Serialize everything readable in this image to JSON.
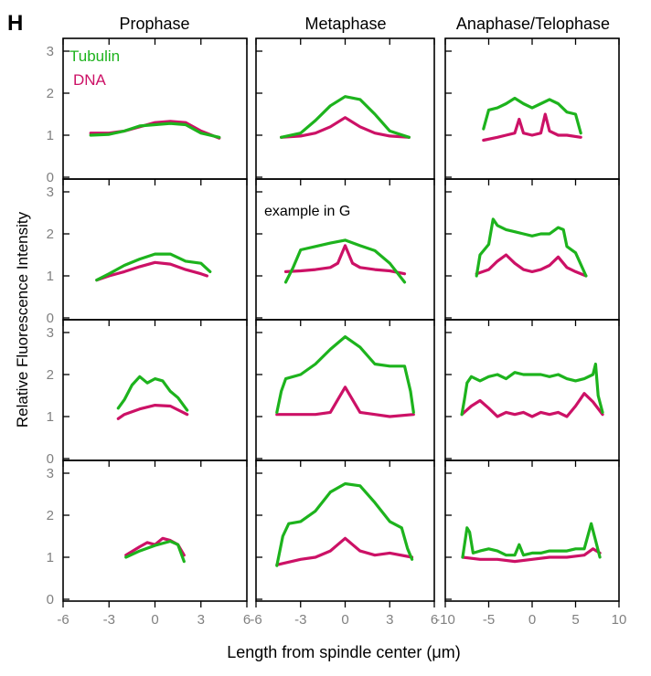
{
  "figure": {
    "panel_letter": "H",
    "ylabel": "Relative Fluorescence Intensity",
    "xlabel": "Length from spindle center (μm)",
    "annotation": "example in G"
  },
  "legend": {
    "tubulin": "Tubulin",
    "dna": "DNA"
  },
  "colors": {
    "tubulin": "#1db31d",
    "dna": "#cc1166",
    "axis": "#000000",
    "tick_label": "#808080"
  },
  "chart_data": {
    "type": "line",
    "ylim": [
      0,
      3.3
    ],
    "yticks": [
      0,
      1,
      2,
      3
    ],
    "grid": false,
    "legend_position": "top-left",
    "columns": [
      {
        "title": "Prophase",
        "xlim": [
          -6,
          6
        ],
        "xticks": [
          -6,
          -3,
          0,
          3,
          6
        ],
        "panels": [
          {
            "tubulin": {
              "x": [
                -4.2,
                -3,
                -2,
                -1,
                0,
                1,
                2,
                3,
                4.2
              ],
              "y": [
                1.0,
                1.02,
                1.1,
                1.22,
                1.25,
                1.28,
                1.25,
                1.05,
                0.95
              ]
            },
            "dna": {
              "x": [
                -4.2,
                -3,
                -2,
                -1,
                0,
                1,
                2,
                3,
                4.2
              ],
              "y": [
                1.05,
                1.05,
                1.1,
                1.2,
                1.3,
                1.33,
                1.3,
                1.1,
                0.93
              ]
            }
          },
          {
            "tubulin": {
              "x": [
                -3.8,
                -3,
                -2,
                -1,
                0,
                1,
                2,
                3,
                3.6
              ],
              "y": [
                0.9,
                1.05,
                1.25,
                1.4,
                1.52,
                1.52,
                1.35,
                1.3,
                1.1
              ]
            },
            "dna": {
              "x": [
                -3.8,
                -3,
                -2,
                -1,
                0,
                1,
                2,
                3,
                3.4
              ],
              "y": [
                0.9,
                1.0,
                1.1,
                1.22,
                1.32,
                1.28,
                1.15,
                1.05,
                1.0
              ]
            }
          },
          {
            "tubulin": {
              "x": [
                -2.4,
                -2,
                -1.5,
                -1,
                -0.5,
                0,
                0.5,
                1,
                1.5,
                2.1
              ],
              "y": [
                1.2,
                1.4,
                1.75,
                1.95,
                1.8,
                1.9,
                1.85,
                1.6,
                1.45,
                1.15
              ]
            },
            "dna": {
              "x": [
                -2.4,
                -2,
                -1,
                0,
                1,
                2.1
              ],
              "y": [
                0.95,
                1.05,
                1.18,
                1.27,
                1.25,
                1.05
              ]
            }
          },
          {
            "tubulin": {
              "x": [
                -1.9,
                -1,
                0,
                1,
                1.5,
                1.9
              ],
              "y": [
                1.0,
                1.15,
                1.28,
                1.38,
                1.3,
                0.9
              ]
            },
            "dna": {
              "x": [
                -1.9,
                -1,
                -0.5,
                0,
                0.5,
                1,
                1.5,
                1.9
              ],
              "y": [
                1.05,
                1.25,
                1.35,
                1.3,
                1.45,
                1.4,
                1.3,
                1.05
              ]
            }
          }
        ]
      },
      {
        "title": "Metaphase",
        "xlim": [
          -6,
          6
        ],
        "xticks": [
          -6,
          -3,
          0,
          3,
          6
        ],
        "panels": [
          {
            "tubulin": {
              "x": [
                -4.3,
                -3,
                -2,
                -1,
                0,
                1,
                2,
                3,
                4.3
              ],
              "y": [
                0.95,
                1.05,
                1.35,
                1.7,
                1.92,
                1.85,
                1.5,
                1.1,
                0.95
              ]
            },
            "dna": {
              "x": [
                -4.3,
                -3,
                -2,
                -1,
                0,
                1,
                2,
                3,
                4.3
              ],
              "y": [
                0.95,
                0.98,
                1.05,
                1.2,
                1.42,
                1.2,
                1.05,
                0.98,
                0.95
              ]
            }
          },
          {
            "tubulin": {
              "x": [
                -4.0,
                -3.5,
                -3,
                -2,
                -1,
                0,
                1,
                2,
                3,
                4.0
              ],
              "y": [
                0.85,
                1.2,
                1.62,
                1.7,
                1.78,
                1.85,
                1.72,
                1.6,
                1.3,
                0.85
              ]
            },
            "dna": {
              "x": [
                -4.0,
                -3,
                -2,
                -1,
                -0.5,
                0,
                0.5,
                1,
                2,
                3,
                4.0
              ],
              "y": [
                1.1,
                1.12,
                1.15,
                1.2,
                1.3,
                1.72,
                1.3,
                1.2,
                1.15,
                1.12,
                1.05
              ]
            }
          },
          {
            "tubulin": {
              "x": [
                -4.6,
                -4.3,
                -4.0,
                -3,
                -2,
                -1,
                0,
                1,
                2,
                3,
                4.0,
                4.4,
                4.6
              ],
              "y": [
                1.1,
                1.6,
                1.9,
                2.0,
                2.25,
                2.6,
                2.9,
                2.65,
                2.25,
                2.2,
                2.2,
                1.6,
                1.1
              ]
            },
            "dna": {
              "x": [
                -4.6,
                -3,
                -2,
                -1,
                -0.5,
                0,
                0.5,
                1,
                2,
                3,
                4.6
              ],
              "y": [
                1.05,
                1.05,
                1.05,
                1.1,
                1.4,
                1.7,
                1.4,
                1.1,
                1.05,
                1.0,
                1.05
              ]
            }
          },
          {
            "tubulin": {
              "x": [
                -4.6,
                -4.2,
                -3.8,
                -3,
                -2,
                -1,
                0,
                1,
                2,
                3,
                3.8,
                4.2,
                4.5
              ],
              "y": [
                0.8,
                1.5,
                1.8,
                1.85,
                2.1,
                2.55,
                2.75,
                2.7,
                2.3,
                1.85,
                1.7,
                1.2,
                0.95
              ]
            },
            "dna": {
              "x": [
                -4.6,
                -3,
                -2,
                -1,
                -0.5,
                0,
                0.5,
                1,
                2,
                3,
                4.5
              ],
              "y": [
                0.82,
                0.95,
                1.0,
                1.15,
                1.3,
                1.45,
                1.3,
                1.15,
                1.05,
                1.1,
                1.0
              ]
            }
          }
        ]
      },
      {
        "title": "Anaphase/Telophase",
        "xlim": [
          -10,
          10
        ],
        "xticks": [
          -10,
          -5,
          0,
          5,
          10
        ],
        "panels": [
          {
            "tubulin": {
              "x": [
                -5.6,
                -5,
                -4,
                -3,
                -2,
                -1,
                0,
                1,
                2,
                3,
                4,
                5,
                5.6
              ],
              "y": [
                1.15,
                1.6,
                1.65,
                1.75,
                1.88,
                1.75,
                1.65,
                1.75,
                1.85,
                1.75,
                1.55,
                1.5,
                1.05
              ]
            },
            "dna": {
              "x": [
                -5.6,
                -4,
                -3,
                -2,
                -1.5,
                -1,
                0,
                1,
                1.5,
                2,
                3,
                4,
                5.6
              ],
              "y": [
                0.88,
                0.95,
                1.0,
                1.05,
                1.38,
                1.05,
                1.0,
                1.05,
                1.5,
                1.1,
                1.0,
                1.0,
                0.95
              ]
            }
          },
          {
            "tubulin": {
              "x": [
                -6.4,
                -6,
                -5,
                -4.5,
                -4,
                -3,
                -2,
                -1,
                0,
                1,
                2,
                3,
                3.6,
                4,
                5,
                6.2
              ],
              "y": [
                1.0,
                1.5,
                1.75,
                2.35,
                2.2,
                2.1,
                2.05,
                2.0,
                1.95,
                2.0,
                2.0,
                2.15,
                2.1,
                1.7,
                1.55,
                1.0
              ]
            },
            "dna": {
              "x": [
                -6.4,
                -5,
                -4,
                -3,
                -2,
                -1,
                0,
                1,
                2,
                3,
                4,
                5,
                6.2
              ],
              "y": [
                1.05,
                1.15,
                1.35,
                1.5,
                1.3,
                1.15,
                1.1,
                1.15,
                1.25,
                1.45,
                1.2,
                1.1,
                1.0
              ]
            }
          },
          {
            "tubulin": {
              "x": [
                -8.1,
                -7.8,
                -7.5,
                -7,
                -6,
                -5,
                -4,
                -3,
                -2,
                -1,
                0,
                1,
                2,
                3,
                4,
                5,
                6,
                7,
                7.3,
                7.6,
                8.1
              ],
              "y": [
                1.05,
                1.4,
                1.8,
                1.95,
                1.85,
                1.95,
                2.0,
                1.9,
                2.05,
                2.0,
                2.0,
                2.0,
                1.95,
                2.0,
                1.9,
                1.85,
                1.9,
                2.0,
                2.25,
                1.5,
                1.1
              ]
            },
            "dna": {
              "x": [
                -8.1,
                -7,
                -6,
                -5,
                -4,
                -3,
                -2,
                -1,
                0,
                1,
                2,
                3,
                4,
                5,
                6,
                7,
                8.1
              ],
              "y": [
                1.05,
                1.25,
                1.38,
                1.2,
                1.0,
                1.1,
                1.05,
                1.1,
                1.0,
                1.1,
                1.05,
                1.1,
                1.0,
                1.25,
                1.55,
                1.35,
                1.05
              ]
            }
          },
          {
            "tubulin": {
              "x": [
                -8.0,
                -7.5,
                -7.2,
                -6.8,
                -6,
                -5,
                -4,
                -3,
                -2,
                -1.5,
                -1,
                0,
                1,
                2,
                3,
                4,
                5,
                6,
                6.8,
                7.3,
                7.8
              ],
              "y": [
                1.0,
                1.7,
                1.6,
                1.1,
                1.15,
                1.2,
                1.15,
                1.05,
                1.05,
                1.3,
                1.05,
                1.1,
                1.1,
                1.15,
                1.15,
                1.15,
                1.2,
                1.2,
                1.8,
                1.4,
                1.0
              ]
            },
            "dna": {
              "x": [
                -8.0,
                -6,
                -4,
                -2,
                0,
                2,
                4,
                6,
                7,
                7.8
              ],
              "y": [
                1.0,
                0.95,
                0.95,
                0.9,
                0.95,
                1.0,
                1.0,
                1.05,
                1.2,
                1.1
              ]
            }
          }
        ]
      }
    ]
  }
}
